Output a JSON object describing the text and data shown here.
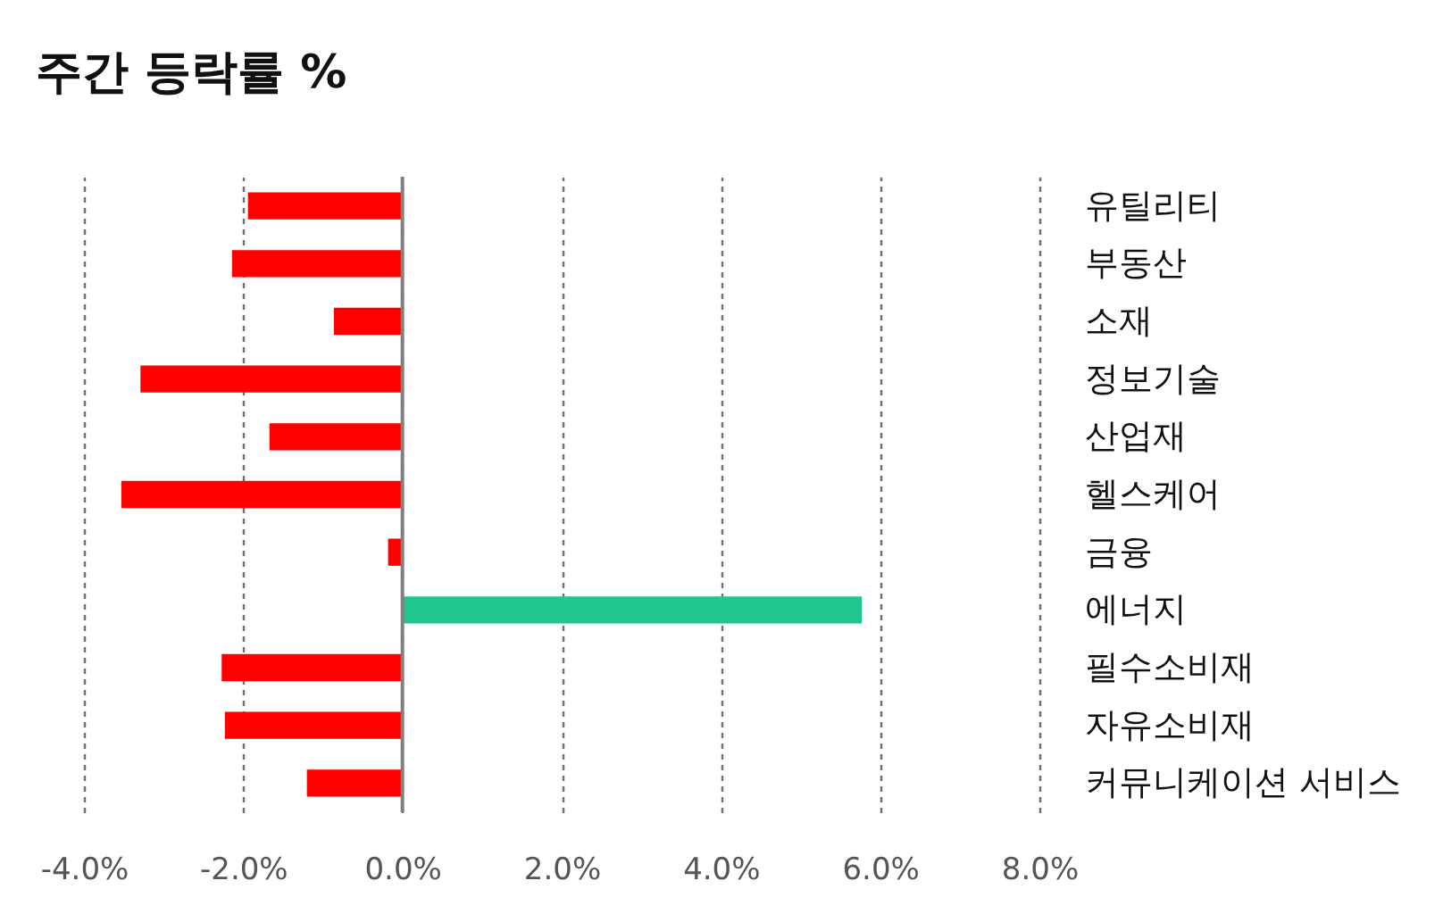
{
  "chart_data": {
    "type": "bar",
    "orientation": "horizontal",
    "title": "주간 등락률 %",
    "categories": [
      "유틸리티",
      "부동산",
      "소재",
      "정보기술",
      "산업재",
      "헬스케어",
      "금융",
      "에너지",
      "필수소비재",
      "자유소비재",
      "커뮤니케이션 서비스"
    ],
    "values": [
      -1.94,
      -2.14,
      -0.86,
      -3.29,
      -1.67,
      -3.53,
      -0.18,
      5.77,
      -2.27,
      -2.23,
      -1.2
    ],
    "colors": [
      "#ff0000",
      "#ff0000",
      "#ff0000",
      "#ff0000",
      "#ff0000",
      "#ff0000",
      "#ff0000",
      "#1fc78f",
      "#ff0000",
      "#ff0000",
      "#ff0000"
    ],
    "xlim": [
      -4,
      8
    ],
    "xticks": [
      {
        "value": -4,
        "label": "-4.0%"
      },
      {
        "value": -2,
        "label": "-2.0%"
      },
      {
        "value": 0,
        "label": "0.0%"
      },
      {
        "value": 2,
        "label": "2.0%"
      },
      {
        "value": 4,
        "label": "4.0%"
      },
      {
        "value": 6,
        "label": "6.0%"
      },
      {
        "value": 8,
        "label": "8.0%"
      }
    ],
    "grid": "x",
    "ref_lines": [
      {
        "axis": "x",
        "value": 0,
        "color": "#808080",
        "line_style": "solid"
      }
    ]
  }
}
